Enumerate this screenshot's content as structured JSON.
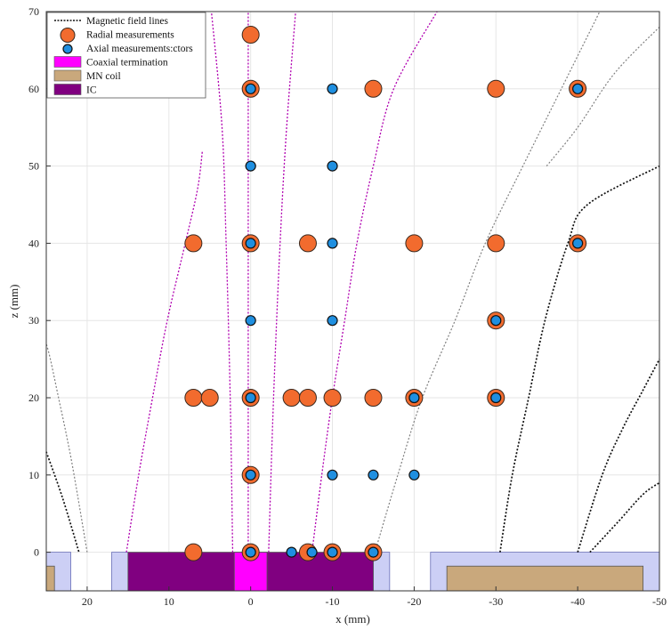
{
  "chart_data": {
    "type": "scatter",
    "xlabel": "x (mm)",
    "ylabel": "z (mm)",
    "xlim": [
      25,
      -50
    ],
    "ylim": [
      -5,
      70
    ],
    "x_direction": "reversed",
    "x_ticks": [
      20,
      10,
      0,
      -10,
      -20,
      -30,
      -40,
      -50
    ],
    "y_ticks": [
      0,
      10,
      20,
      30,
      40,
      50,
      60,
      70
    ],
    "grid": true,
    "legend_placement": "top-left",
    "legend": [
      {
        "key": "field_lines",
        "label": "Magnetic field lines"
      },
      {
        "key": "radial",
        "label": "Radial measurements"
      },
      {
        "key": "axial",
        "label": "Axial measurements:ctors"
      },
      {
        "key": "coax",
        "label": "Coaxial termination"
      },
      {
        "key": "mn",
        "label": "MN coil"
      },
      {
        "key": "ic",
        "label": "IC"
      }
    ],
    "colors": {
      "radial": "#f26b2e",
      "axial": "#1f8fe0",
      "coax": "#ff00ff",
      "mn": "#c9a87c",
      "ic": "#800080",
      "housing": "#cccff5",
      "field_magenta": "#b000b0",
      "field_gray": "#808080",
      "field_black": "#111111"
    },
    "series": [
      {
        "key": "radial",
        "name": "Radial measurements",
        "points": [
          [
            0,
            67
          ],
          [
            0,
            60
          ],
          [
            -15,
            60
          ],
          [
            -30,
            60
          ],
          [
            -40,
            60
          ],
          [
            7,
            40
          ],
          [
            0,
            40
          ],
          [
            -7,
            40
          ],
          [
            -20,
            40
          ],
          [
            -30,
            40
          ],
          [
            -40,
            40
          ],
          [
            -30,
            30
          ],
          [
            7,
            20
          ],
          [
            5,
            20
          ],
          [
            0,
            20
          ],
          [
            -5,
            20
          ],
          [
            -7,
            20
          ],
          [
            -10,
            20
          ],
          [
            -15,
            20
          ],
          [
            -20,
            20
          ],
          [
            -30,
            20
          ],
          [
            0,
            10
          ],
          [
            7,
            0
          ],
          [
            0,
            0
          ],
          [
            -7,
            0
          ],
          [
            -10,
            0
          ],
          [
            -15,
            0
          ]
        ]
      },
      {
        "key": "axial",
        "name": "Axial measurements:ctors",
        "points": [
          [
            0,
            60
          ],
          [
            -10,
            60
          ],
          [
            -40,
            60
          ],
          [
            0,
            50
          ],
          [
            -10,
            50
          ],
          [
            0,
            40
          ],
          [
            -10,
            40
          ],
          [
            -40,
            40
          ],
          [
            0,
            30
          ],
          [
            -10,
            30
          ],
          [
            -30,
            30
          ],
          [
            0,
            20
          ],
          [
            -20,
            20
          ],
          [
            -30,
            20
          ],
          [
            0,
            10
          ],
          [
            -10,
            10
          ],
          [
            -15,
            10
          ],
          [
            -20,
            10
          ],
          [
            0,
            0
          ],
          [
            -5,
            0
          ],
          [
            -7.5,
            0
          ],
          [
            -10,
            0
          ],
          [
            -15,
            0
          ]
        ]
      }
    ],
    "field_lines": [
      {
        "color": "field_magenta",
        "width": 1.3,
        "points": [
          [
            2.2,
            0
          ],
          [
            2.5,
            20
          ],
          [
            3.0,
            40
          ],
          [
            3.5,
            55
          ],
          [
            4.8,
            70
          ]
        ]
      },
      {
        "color": "field_magenta",
        "width": 1.3,
        "points": [
          [
            -2.2,
            0
          ],
          [
            -2.8,
            20
          ],
          [
            -3.6,
            40
          ],
          [
            -4.4,
            55
          ],
          [
            -5.5,
            70
          ]
        ]
      },
      {
        "color": "field_magenta",
        "width": 1.3,
        "points": [
          [
            0.3,
            0
          ],
          [
            0.3,
            35
          ],
          [
            0.3,
            70
          ]
        ]
      },
      {
        "color": "field_magenta",
        "width": 1.3,
        "points": [
          [
            15.2,
            0
          ],
          [
            13.7,
            10
          ],
          [
            12.0,
            20
          ],
          [
            10.2,
            30
          ],
          [
            8.0,
            40
          ],
          [
            6.5,
            47
          ],
          [
            5.9,
            52
          ]
        ]
      },
      {
        "color": "field_magenta",
        "width": 1.3,
        "points": [
          [
            -7.5,
            0
          ],
          [
            -8.7,
            10
          ],
          [
            -10.0,
            20
          ],
          [
            -11.5,
            30
          ],
          [
            -13.0,
            40
          ],
          [
            -15.0,
            50
          ],
          [
            -17.5,
            60
          ],
          [
            -22.8,
            70
          ]
        ]
      },
      {
        "color": "field_gray",
        "width": 1.2,
        "points": [
          [
            20.0,
            0
          ],
          [
            21.6,
            10
          ],
          [
            22.5,
            15
          ],
          [
            23.5,
            20
          ],
          [
            24.5,
            25
          ],
          [
            25.0,
            27
          ]
        ]
      },
      {
        "color": "field_gray",
        "width": 1.2,
        "points": [
          [
            -15.2,
            0
          ],
          [
            -18.0,
            10
          ],
          [
            -21.0,
            20
          ],
          [
            -25.0,
            30
          ],
          [
            -28.7,
            40
          ],
          [
            -33.3,
            50
          ],
          [
            -38.0,
            60
          ],
          [
            -42.7,
            70
          ]
        ]
      },
      {
        "color": "field_gray",
        "width": 1.2,
        "points": [
          [
            -36.2,
            50
          ],
          [
            -40.0,
            55
          ],
          [
            -44.5,
            62
          ],
          [
            -50.0,
            68
          ]
        ]
      },
      {
        "color": "field_black",
        "width": 1.7,
        "points": [
          [
            -30.5,
            0
          ],
          [
            -32.0,
            10
          ],
          [
            -34.0,
            20
          ],
          [
            -36.0,
            30
          ],
          [
            -38.8,
            40
          ],
          [
            -41.2,
            45
          ],
          [
            -50.0,
            50
          ]
        ]
      },
      {
        "color": "field_black",
        "width": 1.7,
        "points": [
          [
            -40.0,
            0
          ],
          [
            -43.0,
            10
          ],
          [
            -45.5,
            16
          ],
          [
            -48.0,
            21
          ],
          [
            -50.0,
            25
          ]
        ]
      },
      {
        "color": "field_black",
        "width": 1.7,
        "points": [
          [
            25.0,
            13
          ],
          [
            23.0,
            7
          ],
          [
            21.0,
            0
          ]
        ]
      },
      {
        "color": "field_black",
        "width": 1.7,
        "points": [
          [
            -41.5,
            0
          ],
          [
            -45.0,
            4
          ],
          [
            -48.0,
            7.5
          ],
          [
            -50.0,
            9
          ]
        ]
      }
    ],
    "regions": [
      {
        "key": "housing",
        "x": [
          25,
          22
        ],
        "z": [
          -5,
          0
        ]
      },
      {
        "key": "housing",
        "x": [
          17,
          15
        ],
        "z": [
          -5,
          0
        ]
      },
      {
        "key": "housing",
        "x": [
          -15,
          -17
        ],
        "z": [
          -5,
          0
        ]
      },
      {
        "key": "housing",
        "x": [
          -22,
          -50
        ],
        "z": [
          -5,
          0
        ]
      },
      {
        "key": "mn",
        "x": [
          25,
          24
        ],
        "z": [
          -5,
          -1.8
        ]
      },
      {
        "key": "mn",
        "x": [
          -24,
          -48
        ],
        "z": [
          -5,
          -1.8
        ]
      },
      {
        "key": "ic",
        "x": [
          15,
          -15
        ],
        "z": [
          -5,
          0
        ]
      },
      {
        "key": "coax",
        "x": [
          2,
          -2
        ],
        "z": [
          -5,
          0
        ]
      }
    ]
  }
}
